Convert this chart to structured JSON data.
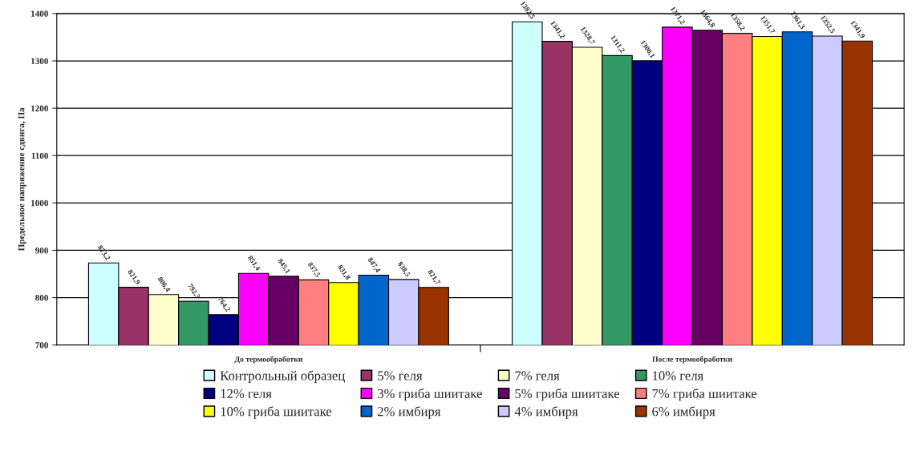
{
  "chart_data": {
    "type": "bar",
    "ylabel": "Предельное напряжение сдвига, Па",
    "categories": [
      "До термообработки",
      "После термообработки"
    ],
    "ylim": [
      700,
      1400
    ],
    "yticks": [
      700,
      800,
      900,
      1000,
      1100,
      1200,
      1300,
      1400
    ],
    "grid": "y",
    "legend": "bottom",
    "series": [
      {
        "name": "Контрольный образец",
        "color": "#ccffff",
        "values": [
          873.2,
          1382.5
        ],
        "value_labels": [
          "873,2",
          "1382,5"
        ]
      },
      {
        "name": "5% геля",
        "color": "#993366",
        "values": [
          821.9,
          1341.2
        ],
        "value_labels": [
          "821,9",
          "1341,2"
        ]
      },
      {
        "name": "7% геля",
        "color": "#ffffcc",
        "values": [
          806.4,
          1328.7
        ],
        "value_labels": [
          "806,4",
          "1328,7"
        ]
      },
      {
        "name": "10% геля",
        "color": "#339966",
        "values": [
          792.3,
          1311.2
        ],
        "value_labels": [
          "792,3",
          "1311,2"
        ]
      },
      {
        "name": "12% геля",
        "color": "#000080",
        "values": [
          764.2,
          1300.1
        ],
        "value_labels": [
          "764,2",
          "1300,1"
        ]
      },
      {
        "name": "3% гриба шиитаке",
        "color": "#ff00ff",
        "values": [
          851.4,
          1371.2
        ],
        "value_labels": [
          "851,4",
          "1371,2"
        ]
      },
      {
        "name": "5% гриба шиитаке",
        "color": "#660066",
        "values": [
          845.1,
          1364.8
        ],
        "value_labels": [
          "845,1",
          "1364,8"
        ]
      },
      {
        "name": "7% гриба шиитаке",
        "color": "#ff8080",
        "values": [
          837.5,
          1358.2
        ],
        "value_labels": [
          "837,5",
          "1358,2"
        ]
      },
      {
        "name": "10% гриба шиитаке",
        "color": "#ffff00",
        "values": [
          831.8,
          1351.7
        ],
        "value_labels": [
          "831,8",
          "1351,7"
        ]
      },
      {
        "name": "2% имбиря",
        "color": "#0066cc",
        "values": [
          847.4,
          1361.3
        ],
        "value_labels": [
          "847,4",
          "1361,3"
        ]
      },
      {
        "name": "4% имбиря",
        "color": "#ccccff",
        "values": [
          838.5,
          1352.5
        ],
        "value_labels": [
          "838,5",
          "1352,5"
        ]
      },
      {
        "name": "6% имбиря",
        "color": "#993300",
        "values": [
          821.7,
          1341.9
        ],
        "value_labels": [
          "821,7",
          "1341,9"
        ]
      }
    ]
  }
}
